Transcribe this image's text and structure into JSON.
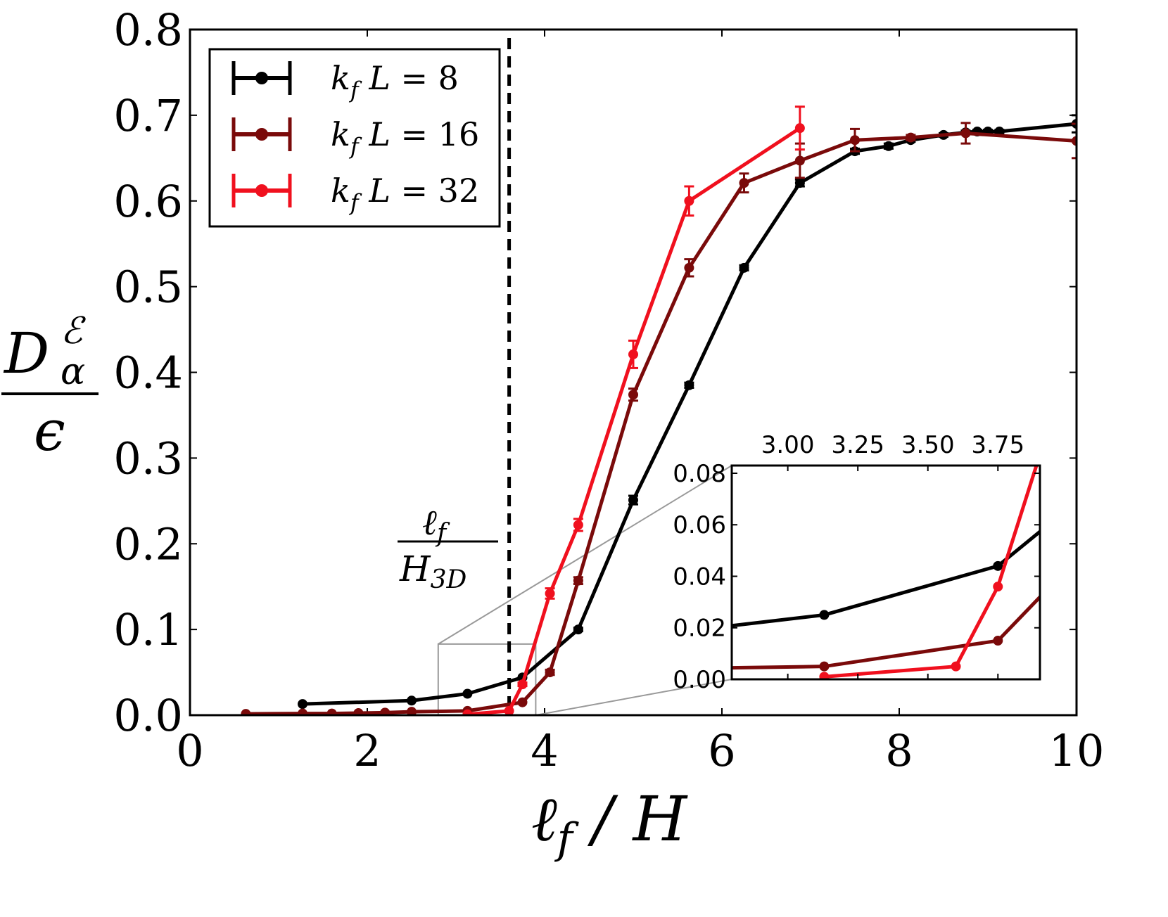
{
  "chart_data": [
    {
      "type": "line",
      "id": "main",
      "title": "",
      "xlabel": "ℓ_f / H",
      "ylabel": {
        "numerator": "D",
        "superscript": "ℰ",
        "subscript": "α",
        "denominator": "ϵ"
      },
      "xlim": [
        0,
        10
      ],
      "ylim": [
        0,
        0.8
      ],
      "xticks": [
        0,
        2,
        4,
        6,
        8,
        10
      ],
      "xtick_labels": [
        "0",
        "2",
        "4",
        "6",
        "8",
        "10"
      ],
      "yticks": [
        0,
        0.1,
        0.2,
        0.3,
        0.4,
        0.5,
        0.6,
        0.7,
        0.8
      ],
      "ytick_labels": [
        "0.0",
        "0.1",
        "0.2",
        "0.3",
        "0.4",
        "0.5",
        "0.6",
        "0.7",
        "0.8"
      ],
      "legend_position": "top-left",
      "vline": {
        "x": 3.6,
        "style": "dashed",
        "color": "#000000"
      },
      "annotation": {
        "numerator": "ℓ",
        "numerator_sub": "f",
        "denominator": "H",
        "denominator_sub": "3D"
      },
      "zoom_box": {
        "x": [
          2.8,
          3.9
        ],
        "y": [
          0,
          0.083
        ]
      },
      "series": [
        {
          "name": "k_f L = 8",
          "legend": {
            "k": "k",
            "k_sub": "f",
            "rest": "L = 8"
          },
          "color": "#000000",
          "x": [
            1.27,
            2.5,
            3.13,
            3.75,
            4.38,
            5.0,
            5.63,
            6.25,
            6.88,
            7.5,
            7.88,
            8.13,
            8.5,
            8.75,
            8.88,
            9.0,
            9.13,
            10.0
          ],
          "y": [
            0.013,
            0.017,
            0.025,
            0.044,
            0.1,
            0.251,
            0.385,
            0.522,
            0.621,
            0.658,
            0.664,
            0.671,
            0.677,
            0.68,
            0.681,
            0.681,
            0.681,
            0.69
          ],
          "err": [
            0.001,
            0.001,
            0.001,
            0.001,
            0.002,
            0.005,
            0.003,
            0.003,
            0.004,
            0.003,
            0.003,
            0.002,
            0.002,
            0.002,
            0.002,
            0.002,
            0.002,
            0.01
          ]
        },
        {
          "name": "k_f L = 16",
          "legend": {
            "k": "k",
            "k_sub": "f",
            "rest": "L = 16"
          },
          "color": "#7a0a0a",
          "x": [
            0.63,
            1.27,
            1.6,
            1.9,
            2.2,
            2.5,
            3.13,
            3.75,
            4.06,
            4.38,
            5.0,
            5.63,
            6.25,
            6.88,
            7.5,
            8.13,
            8.75,
            10.0
          ],
          "y": [
            0.0015,
            0.002,
            0.002,
            0.0025,
            0.003,
            0.004,
            0.005,
            0.015,
            0.05,
            0.157,
            0.374,
            0.522,
            0.621,
            0.647,
            0.671,
            0.674,
            0.679,
            0.67
          ],
          "err": [
            0.0005,
            0.0005,
            0.0005,
            0.0005,
            0.0005,
            0.0005,
            0.0005,
            0.001,
            0.003,
            0.004,
            0.007,
            0.01,
            0.011,
            0.02,
            0.013,
            0.003,
            0.012,
            0.02
          ]
        },
        {
          "name": "k_f L = 32",
          "legend": {
            "k": "k",
            "k_sub": "f",
            "rest": "L = 32"
          },
          "color": "#f0101e",
          "x": [
            3.13,
            3.6,
            3.75,
            4.06,
            4.38,
            5.0,
            5.63,
            6.88
          ],
          "y": [
            0.001,
            0.005,
            0.036,
            0.142,
            0.222,
            0.421,
            0.6,
            0.685
          ],
          "err": [
            0.0005,
            0.0005,
            0.002,
            0.006,
            0.007,
            0.016,
            0.017,
            0.025
          ]
        }
      ]
    },
    {
      "type": "line",
      "id": "inset",
      "xlim": [
        2.8,
        3.9
      ],
      "ylim": [
        0,
        0.083
      ],
      "xticks": [
        3.0,
        3.25,
        3.5,
        3.75
      ],
      "xtick_labels": [
        "3.00",
        "3.25",
        "3.50",
        "3.75"
      ],
      "xtick_position": "top",
      "yticks": [
        0,
        0.02,
        0.04,
        0.06,
        0.08
      ],
      "ytick_labels": [
        "0.00",
        "0.02",
        "0.04",
        "0.06",
        "0.08"
      ],
      "series": [
        {
          "name": "k_f L = 8",
          "color": "#000000",
          "x": [
            2.5,
            3.13,
            3.75,
            4.38
          ],
          "y": [
            0.017,
            0.025,
            0.044,
            0.1
          ],
          "markers": [
            3.13,
            3.75
          ]
        },
        {
          "name": "k_f L = 16",
          "color": "#7a0a0a",
          "x": [
            2.5,
            3.13,
            3.75,
            4.06
          ],
          "y": [
            0.004,
            0.005,
            0.015,
            0.05
          ],
          "markers": [
            3.13,
            3.75
          ]
        },
        {
          "name": "k_f L = 32",
          "color": "#f0101e",
          "x": [
            3.13,
            3.6,
            3.75,
            4.06
          ],
          "y": [
            0.001,
            0.005,
            0.036,
            0.142
          ],
          "markers": [
            3.13,
            3.6,
            3.75
          ]
        }
      ]
    }
  ]
}
